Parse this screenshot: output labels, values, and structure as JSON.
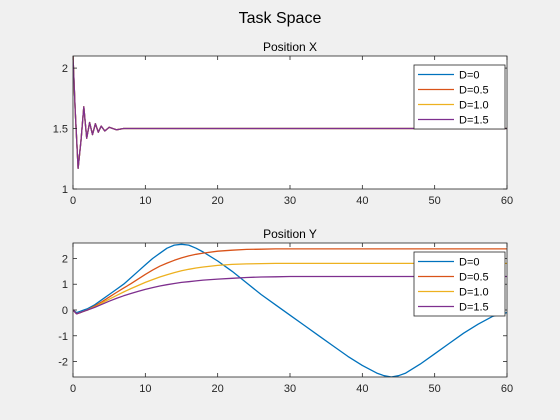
{
  "figure": {
    "title": "Task Space"
  },
  "colors": {
    "D=0": "#0072BD",
    "D=0.5": "#D95319",
    "D=1.0": "#EDB120",
    "D=1.5": "#7E2F8E"
  },
  "chart_data": [
    {
      "type": "line",
      "title": "Position X",
      "xlabel": "",
      "ylabel": "",
      "xlim": [
        0,
        60
      ],
      "ylim": [
        1,
        2.1
      ],
      "xticks": [
        0,
        10,
        20,
        30,
        40,
        50,
        60
      ],
      "yticks": [
        1,
        1.5,
        2
      ],
      "ytick_labels": [
        "1",
        "1.5",
        "2"
      ],
      "legend_position": "top-right",
      "series": [
        {
          "name": "D=0",
          "x": [
            0,
            0.3,
            0.7,
            1.1,
            1.5,
            1.9,
            2.3,
            2.7,
            3.1,
            3.5,
            3.9,
            4.4,
            5,
            6,
            7,
            8,
            10,
            60
          ],
          "y": [
            2.1,
            1.65,
            1.17,
            1.4,
            1.68,
            1.42,
            1.55,
            1.45,
            1.54,
            1.47,
            1.52,
            1.48,
            1.51,
            1.49,
            1.5,
            1.5,
            1.5,
            1.5
          ]
        },
        {
          "name": "D=0.5",
          "x": [
            0,
            0.3,
            0.7,
            1.1,
            1.5,
            1.9,
            2.3,
            2.7,
            3.1,
            3.5,
            3.9,
            4.4,
            5,
            6,
            7,
            8,
            10,
            60
          ],
          "y": [
            2.1,
            1.65,
            1.17,
            1.4,
            1.68,
            1.42,
            1.55,
            1.45,
            1.54,
            1.47,
            1.52,
            1.48,
            1.51,
            1.49,
            1.5,
            1.5,
            1.5,
            1.5
          ]
        },
        {
          "name": "D=1.0",
          "x": [
            0,
            0.3,
            0.7,
            1.1,
            1.5,
            1.9,
            2.3,
            2.7,
            3.1,
            3.5,
            3.9,
            4.4,
            5,
            6,
            7,
            8,
            10,
            60
          ],
          "y": [
            2.1,
            1.65,
            1.17,
            1.4,
            1.68,
            1.42,
            1.55,
            1.45,
            1.54,
            1.47,
            1.52,
            1.48,
            1.51,
            1.49,
            1.5,
            1.5,
            1.5,
            1.5
          ]
        },
        {
          "name": "D=1.5",
          "x": [
            0,
            0.3,
            0.7,
            1.1,
            1.5,
            1.9,
            2.3,
            2.7,
            3.1,
            3.5,
            3.9,
            4.4,
            5,
            6,
            7,
            8,
            10,
            60
          ],
          "y": [
            2.1,
            1.65,
            1.17,
            1.4,
            1.68,
            1.42,
            1.55,
            1.45,
            1.54,
            1.47,
            1.52,
            1.48,
            1.51,
            1.49,
            1.5,
            1.5,
            1.5,
            1.5
          ]
        }
      ]
    },
    {
      "type": "line",
      "title": "Position Y",
      "xlabel": "",
      "ylabel": "",
      "xlim": [
        0,
        60
      ],
      "ylim": [
        -2.6,
        2.6
      ],
      "xticks": [
        0,
        10,
        20,
        30,
        40,
        50,
        60
      ],
      "yticks": [
        -2,
        -1,
        0,
        1,
        2
      ],
      "ytick_labels": [
        "-2",
        "-1",
        "0",
        "1",
        "2"
      ],
      "legend_position": "top-right",
      "series": [
        {
          "name": "D=0",
          "x": [
            0,
            0.5,
            1,
            1.5,
            2,
            3,
            4,
            5,
            6,
            7,
            8,
            9,
            10,
            11,
            12,
            13,
            14,
            15,
            16,
            17,
            18,
            20,
            22,
            24,
            26,
            28,
            30,
            32,
            34,
            36,
            38,
            40,
            42,
            43,
            44,
            45,
            46,
            48,
            50,
            52,
            54,
            56,
            58,
            60
          ],
          "y": [
            0,
            -0.1,
            -0.05,
            0,
            0.05,
            0.2,
            0.4,
            0.6,
            0.8,
            1.0,
            1.25,
            1.5,
            1.75,
            2.0,
            2.2,
            2.4,
            2.52,
            2.55,
            2.52,
            2.4,
            2.25,
            1.9,
            1.5,
            1.05,
            0.6,
            0.2,
            -0.2,
            -0.6,
            -1.0,
            -1.4,
            -1.8,
            -2.15,
            -2.45,
            -2.55,
            -2.6,
            -2.55,
            -2.45,
            -2.1,
            -1.7,
            -1.3,
            -0.9,
            -0.55,
            -0.25,
            -0.1
          ]
        },
        {
          "name": "D=0.5",
          "x": [
            0,
            0.5,
            1,
            1.5,
            2,
            3,
            4,
            5,
            6,
            7,
            8,
            9,
            10,
            11,
            12,
            13,
            14,
            15,
            16,
            17,
            18,
            20,
            22,
            24,
            26,
            28,
            30,
            35,
            40,
            45,
            50,
            55,
            60
          ],
          "y": [
            0,
            -0.15,
            -0.1,
            -0.05,
            0,
            0.15,
            0.32,
            0.5,
            0.68,
            0.85,
            1.02,
            1.2,
            1.38,
            1.55,
            1.7,
            1.82,
            1.93,
            2.02,
            2.1,
            2.16,
            2.21,
            2.28,
            2.32,
            2.35,
            2.36,
            2.37,
            2.37,
            2.37,
            2.37,
            2.37,
            2.37,
            2.37,
            2.37
          ]
        },
        {
          "name": "D=1.0",
          "x": [
            0,
            0.5,
            1,
            1.5,
            2,
            3,
            4,
            5,
            6,
            7,
            8,
            9,
            10,
            11,
            12,
            13,
            14,
            15,
            16,
            17,
            18,
            20,
            22,
            24,
            26,
            28,
            30,
            35,
            40,
            45,
            50,
            55,
            60
          ],
          "y": [
            0,
            -0.15,
            -0.1,
            -0.05,
            0,
            0.12,
            0.27,
            0.42,
            0.56,
            0.7,
            0.83,
            0.95,
            1.07,
            1.18,
            1.28,
            1.37,
            1.45,
            1.52,
            1.58,
            1.63,
            1.67,
            1.73,
            1.77,
            1.79,
            1.8,
            1.81,
            1.81,
            1.81,
            1.81,
            1.81,
            1.81,
            1.81,
            1.81
          ]
        },
        {
          "name": "D=1.5",
          "x": [
            0,
            0.5,
            1,
            1.5,
            2,
            3,
            4,
            5,
            6,
            7,
            8,
            9,
            10,
            11,
            12,
            13,
            14,
            15,
            16,
            17,
            18,
            20,
            22,
            24,
            26,
            28,
            30,
            35,
            40,
            45,
            50,
            55,
            60
          ],
          "y": [
            0,
            -0.15,
            -0.1,
            -0.05,
            0,
            0.1,
            0.22,
            0.34,
            0.45,
            0.55,
            0.64,
            0.72,
            0.8,
            0.87,
            0.93,
            0.98,
            1.03,
            1.07,
            1.1,
            1.13,
            1.16,
            1.2,
            1.23,
            1.26,
            1.28,
            1.29,
            1.3,
            1.3,
            1.3,
            1.3,
            1.3,
            1.3,
            1.3
          ]
        }
      ]
    }
  ]
}
